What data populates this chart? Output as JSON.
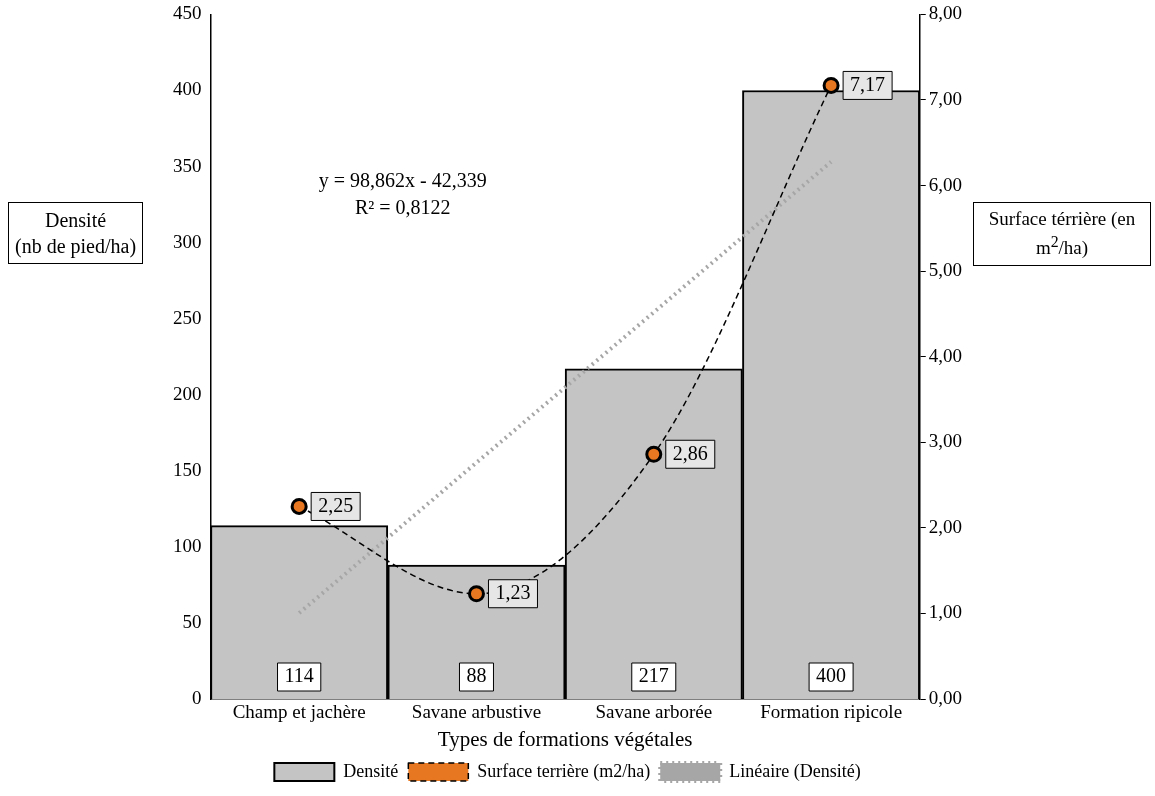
{
  "chart_data": {
    "type": "bar",
    "xlabel": "Types de formations végétales",
    "ylabel": "Densité\n(nb de pied/ha)",
    "y2label": "Surface térrière (en m$^{2}$/ha)",
    "categories": [
      "Champ et jachère",
      "Savane arbustive",
      "Savane arborée",
      "Formation ripicole"
    ],
    "series": [
      {
        "name": "Densité",
        "type": "bar",
        "color": "#c4c4c4",
        "values": [
          114,
          88,
          217,
          400
        ],
        "value_labels": [
          "114",
          "88",
          "217",
          "400"
        ]
      },
      {
        "name": "Surface terrière (m2/ha)",
        "type": "line",
        "axis": "y2",
        "color": "#000000",
        "marker": "circle",
        "line_style": "dashed",
        "values": [
          2.25,
          1.23,
          2.86,
          7.17
        ],
        "value_labels": [
          "2,25",
          "1,23",
          "2,86",
          "7,17"
        ]
      },
      {
        "name": "Linéaire (Densité)",
        "type": "line",
        "color": "#a6a6a6",
        "marker": "none",
        "line_style": "dotted",
        "values": [
          56.5,
          155.4,
          254.2,
          353.1
        ]
      }
    ],
    "ylim": [
      0,
      450
    ],
    "yticks": [
      0,
      50,
      100,
      150,
      200,
      250,
      300,
      350,
      400,
      450
    ],
    "y2lim": [
      0,
      8
    ],
    "y2ticks": [
      {
        "value": 0,
        "label": "0,00"
      },
      {
        "value": 1,
        "label": "1,00"
      },
      {
        "value": 2,
        "label": "2,00"
      },
      {
        "value": 3,
        "label": "3,00"
      },
      {
        "value": 4,
        "label": "4,00"
      },
      {
        "value": 5,
        "label": "5,00"
      },
      {
        "value": 6,
        "label": "6,00"
      },
      {
        "value": 7,
        "label": "7,00"
      },
      {
        "value": 8,
        "label": "8,00"
      }
    ],
    "annotations": [
      "y = 98,862x - 42,339",
      "R² = 0,8122"
    ],
    "grid": false,
    "legend": "bottom"
  }
}
